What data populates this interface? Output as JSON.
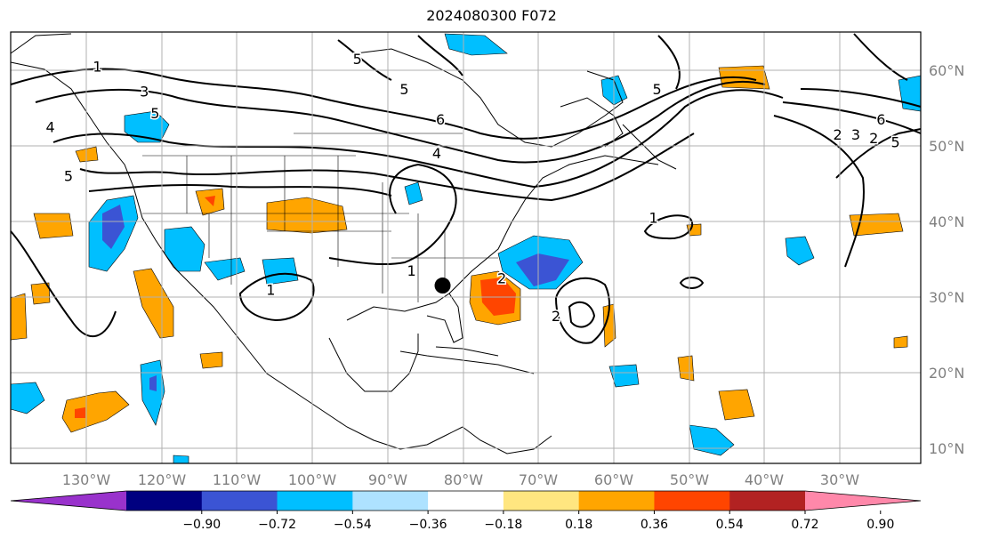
{
  "title": "2024080300 F072",
  "map": {
    "lon_range": [
      -141,
      -15
    ],
    "lat_range": [
      8,
      65
    ],
    "lon_ticks": [
      "130°W",
      "120°W",
      "110°W",
      "100°W",
      "90°W",
      "80°W",
      "70°W",
      "60°W",
      "50°W",
      "40°W",
      "30°W"
    ],
    "lat_ticks": [
      "10°N",
      "20°N",
      "30°N",
      "40°N",
      "50°N",
      "60°N"
    ],
    "grid": true,
    "point_marker": {
      "lon": -81.2,
      "lat": 31.5,
      "color": "#000000"
    },
    "contour_labels": [
      {
        "text": "1",
        "lon": -129.0,
        "lat": 60.5
      },
      {
        "text": "3",
        "lon": -122.5,
        "lat": 57.2
      },
      {
        "text": "5",
        "lon": -121.0,
        "lat": 54.3
      },
      {
        "text": "4",
        "lon": -135.5,
        "lat": 52.5
      },
      {
        "text": "5",
        "lon": -133.0,
        "lat": 46.0
      },
      {
        "text": "5",
        "lon": -93.0,
        "lat": 61.5
      },
      {
        "text": "5",
        "lon": -86.5,
        "lat": 57.5
      },
      {
        "text": "6",
        "lon": -81.5,
        "lat": 53.5
      },
      {
        "text": "4",
        "lon": -82.0,
        "lat": 49.0
      },
      {
        "text": "1",
        "lon": -85.5,
        "lat": 33.5
      },
      {
        "text": "1",
        "lon": -105.0,
        "lat": 31.0
      },
      {
        "text": "1",
        "lon": -52.0,
        "lat": 40.5
      },
      {
        "text": "5",
        "lon": -51.5,
        "lat": 57.5
      },
      {
        "text": "2",
        "lon": -73.0,
        "lat": 32.5
      },
      {
        "text": "2",
        "lon": -65.5,
        "lat": 27.5
      },
      {
        "text": "2",
        "lon": -26.5,
        "lat": 51.5
      },
      {
        "text": "3",
        "lon": -24.0,
        "lat": 51.5
      },
      {
        "text": "2",
        "lon": -21.5,
        "lat": 51.0
      },
      {
        "text": "5",
        "lon": -18.5,
        "lat": 50.5
      },
      {
        "text": "6",
        "lon": -20.5,
        "lat": 53.5
      }
    ]
  },
  "colorbar": {
    "labels": [
      "−0.90",
      "−0.72",
      "−0.54",
      "−0.36",
      "−0.18",
      "0.18",
      "0.36",
      "0.54",
      "0.72",
      "0.90"
    ],
    "colors": [
      "#9932cc",
      "#000080",
      "#3b54d4",
      "#00bfff",
      "#aee2ff",
      "#ffffff",
      "#ffe680",
      "#ffa500",
      "#ff4500",
      "#b22222",
      "#ff88aa"
    ],
    "extend": "both"
  }
}
